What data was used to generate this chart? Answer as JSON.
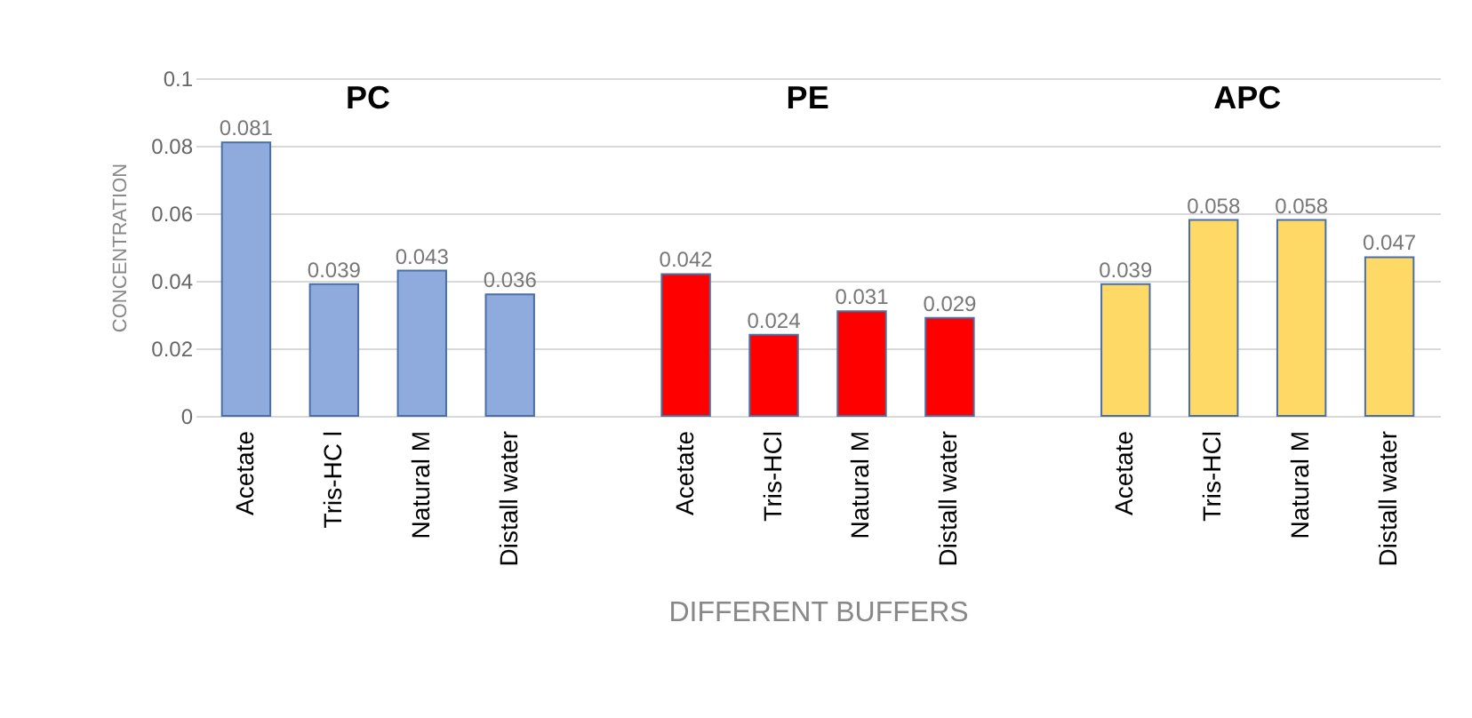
{
  "chart_data": {
    "type": "bar",
    "categories": [
      "Acetate",
      "Tris-HC l",
      "Natural M",
      "Distall water",
      null,
      "Acetate",
      "Tris-HCl",
      "Natural M",
      "Distall water",
      null,
      "Acetate",
      "Tris-HCl",
      "Natural M",
      "Distall water"
    ],
    "values": [
      0.081,
      0.039,
      0.043,
      0.036,
      null,
      0.042,
      0.024,
      0.031,
      0.029,
      null,
      0.039,
      0.058,
      0.058,
      0.047
    ],
    "colors": [
      "#8faadc",
      "#8faadc",
      "#8faadc",
      "#8faadc",
      null,
      "#ff0000",
      "#ff0000",
      "#ff0000",
      "#ff0000",
      null,
      "#ffd966",
      "#ffd966",
      "#ffd966",
      "#ffd966"
    ],
    "data_labels": true,
    "annotations": [
      "PC",
      "PE",
      "APC"
    ],
    "xlabel": "DIFFERENT BUFFERS",
    "ylabel": "CONCENTRATION",
    "ylim": [
      0,
      0.1
    ],
    "yticks": [
      0,
      0.02,
      0.04,
      0.06,
      0.08,
      0.1
    ],
    "grid": "y"
  }
}
